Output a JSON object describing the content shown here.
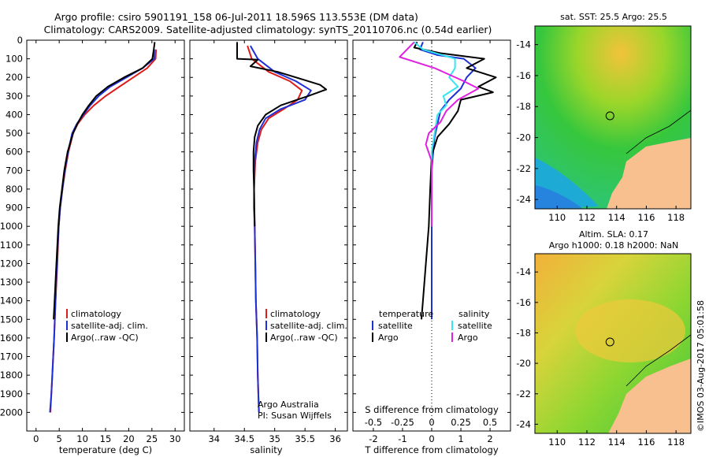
{
  "header": {
    "title_line1": "Argo profile: csiro 5901191_158 06-Jul-2011 18.596S 113.553E (DM data)",
    "title_line2": "Climatology: CARS2009. Satellite-adjusted climatology: synTS_20110706.nc (0.54d earlier)"
  },
  "colors": {
    "climatology": "#dd1c1c",
    "satellite": "#1f2fd6",
    "argo": "#000000",
    "sat_salinity": "#33e6f2",
    "argo_salinity": "#e020e0",
    "land": "#f7c08e"
  },
  "pressure_ticks": [
    "0",
    "100",
    "200",
    "300",
    "400",
    "500",
    "600",
    "700",
    "800",
    "900",
    "1000",
    "1100",
    "1200",
    "1300",
    "1400",
    "1500",
    "1600",
    "1700",
    "1800",
    "1900",
    "2000"
  ],
  "chart_data": [
    {
      "type": "line",
      "panel": "temperature",
      "xlabel": "temperature (deg C)",
      "xlim": [
        -2,
        32
      ],
      "ylim": [
        0,
        2100
      ],
      "y_reversed": true,
      "x_ticks": [
        "0",
        "5",
        "10",
        "15",
        "20",
        "25",
        "30"
      ],
      "legend": [
        "climatology",
        "satellite-adj. clim.",
        "Argo(..raw -QC)"
      ],
      "series": [
        {
          "name": "climatology",
          "color_key": "climatology",
          "points": [
            [
              25.9,
              50
            ],
            [
              25.8,
              100
            ],
            [
              24,
              150
            ],
            [
              21,
              200
            ],
            [
              18,
              250
            ],
            [
              15,
              300
            ],
            [
              12.5,
              350
            ],
            [
              10.5,
              400
            ],
            [
              9,
              450
            ],
            [
              8,
              500
            ],
            [
              7,
              600
            ],
            [
              6.3,
              700
            ],
            [
              5.7,
              800
            ],
            [
              5.2,
              900
            ],
            [
              4.9,
              1000
            ],
            [
              4.6,
              1200
            ],
            [
              4.2,
              1400
            ],
            [
              3.9,
              1600
            ],
            [
              3.5,
              1800
            ],
            [
              3.3,
              1900
            ],
            [
              3.1,
              2000
            ]
          ]
        },
        {
          "name": "satellite-adj. clim.",
          "color_key": "satellite",
          "points": [
            [
              25.5,
              50
            ],
            [
              25.5,
              100
            ],
            [
              23,
              150
            ],
            [
              19.5,
              200
            ],
            [
              16,
              250
            ],
            [
              13.5,
              300
            ],
            [
              11.7,
              350
            ],
            [
              10.2,
              400
            ],
            [
              8.8,
              450
            ],
            [
              7.8,
              500
            ],
            [
              6.9,
              600
            ],
            [
              6.2,
              700
            ],
            [
              5.7,
              800
            ],
            [
              5.2,
              900
            ],
            [
              4.9,
              1000
            ],
            [
              4.5,
              1200
            ],
            [
              4.2,
              1400
            ],
            [
              3.9,
              1600
            ],
            [
              3.5,
              1800
            ],
            [
              3.3,
              1900
            ],
            [
              3,
              2000
            ]
          ]
        },
        {
          "name": "Argo(..raw -QC)",
          "color_key": "argo",
          "points": [
            [
              25.6,
              10
            ],
            [
              25.4,
              50
            ],
            [
              25.1,
              100
            ],
            [
              23,
              150
            ],
            [
              19,
              200
            ],
            [
              15.5,
              250
            ],
            [
              13,
              300
            ],
            [
              11.4,
              350
            ],
            [
              10,
              400
            ],
            [
              8.9,
              450
            ],
            [
              8,
              500
            ],
            [
              6.8,
              600
            ],
            [
              6.1,
              700
            ],
            [
              5.6,
              800
            ],
            [
              5.1,
              900
            ],
            [
              4.8,
              1000
            ],
            [
              4.4,
              1200
            ],
            [
              4.0,
              1400
            ],
            [
              3.8,
              1500
            ]
          ]
        }
      ]
    },
    {
      "type": "line",
      "panel": "salinity",
      "xlabel": "salinity",
      "xlim": [
        33.6,
        36.2
      ],
      "ylim": [
        0,
        2100
      ],
      "y_reversed": true,
      "x_ticks": [
        "34",
        "34.5",
        "35",
        "35.5",
        "36"
      ],
      "legend": [
        "climatology",
        "satellite-adj. clim.",
        "Argo(..raw -QC)"
      ],
      "annotation": [
        "Argo Australia",
        "PI: Susan Wijffels"
      ],
      "series": [
        {
          "name": "climatology",
          "color_key": "climatology",
          "points": [
            [
              34.55,
              30
            ],
            [
              34.62,
              100
            ],
            [
              34.9,
              170
            ],
            [
              35.25,
              220
            ],
            [
              35.45,
              270
            ],
            [
              35.38,
              320
            ],
            [
              35.15,
              370
            ],
            [
              34.9,
              420
            ],
            [
              34.78,
              480
            ],
            [
              34.72,
              550
            ],
            [
              34.68,
              650
            ],
            [
              34.66,
              800
            ],
            [
              34.67,
              1000
            ],
            [
              34.68,
              1200
            ],
            [
              34.69,
              1400
            ],
            [
              34.71,
              1600
            ],
            [
              34.72,
              1800
            ],
            [
              34.74,
              2000
            ]
          ]
        },
        {
          "name": "satellite-adj. clim.",
          "color_key": "satellite",
          "points": [
            [
              34.6,
              30
            ],
            [
              34.72,
              100
            ],
            [
              35.0,
              170
            ],
            [
              35.35,
              220
            ],
            [
              35.6,
              270
            ],
            [
              35.5,
              320
            ],
            [
              35.1,
              370
            ],
            [
              34.85,
              420
            ],
            [
              34.75,
              480
            ],
            [
              34.7,
              550
            ],
            [
              34.67,
              650
            ],
            [
              34.66,
              800
            ],
            [
              34.67,
              1000
            ],
            [
              34.68,
              1200
            ],
            [
              34.69,
              1400
            ],
            [
              34.71,
              1600
            ],
            [
              34.72,
              1800
            ],
            [
              34.74,
              2000
            ]
          ]
        },
        {
          "name": "Argo(..raw -QC)",
          "color_key": "argo",
          "points": [
            [
              34.38,
              10
            ],
            [
              34.38,
              100
            ],
            [
              34.72,
              105
            ],
            [
              34.6,
              140
            ],
            [
              35.05,
              170
            ],
            [
              35.45,
              210
            ],
            [
              35.75,
              240
            ],
            [
              35.85,
              265
            ],
            [
              35.55,
              300
            ],
            [
              35.1,
              350
            ],
            [
              34.85,
              400
            ],
            [
              34.72,
              460
            ],
            [
              34.67,
              520
            ],
            [
              34.65,
              600
            ],
            [
              34.65,
              700
            ],
            [
              34.66,
              800
            ],
            [
              34.66,
              900
            ],
            [
              34.67,
              1000
            ]
          ]
        }
      ]
    },
    {
      "type": "line",
      "panel": "difference",
      "xlabel": "T difference from climatology",
      "xlabel_top": "S difference from climatology",
      "xlim": [
        -2.7,
        2.7
      ],
      "ylim": [
        0,
        2100
      ],
      "y_reversed": true,
      "x_ticks": [
        "-2",
        "-1",
        "0",
        "1",
        "2"
      ],
      "x_ticks_top": [
        "-0.5",
        "-0.25",
        "0",
        "0.25",
        "0.5"
      ],
      "legend_headers": [
        "temperature",
        "salinity"
      ],
      "legend": [
        "satellite",
        "Argo",
        "satellite",
        "Argo"
      ],
      "series": [
        {
          "name": "satellite",
          "color_key": "satellite",
          "points": [
            [
              -0.3,
              10
            ],
            [
              -0.4,
              50
            ],
            [
              0.2,
              80
            ],
            [
              1.1,
              100
            ],
            [
              1.5,
              150
            ],
            [
              1.2,
              200
            ],
            [
              1.0,
              260
            ],
            [
              0.6,
              320
            ],
            [
              0.3,
              380
            ],
            [
              0.2,
              450
            ],
            [
              0.1,
              520
            ],
            [
              0.05,
              600
            ],
            [
              0.0,
              700
            ],
            [
              0.0,
              1000
            ],
            [
              0.0,
              1500
            ]
          ]
        },
        {
          "name": "Argo",
          "color_key": "argo",
          "points": [
            [
              -0.5,
              10
            ],
            [
              -0.6,
              40
            ],
            [
              0.3,
              70
            ],
            [
              1.8,
              100
            ],
            [
              1.2,
              150
            ],
            [
              2.2,
              200
            ],
            [
              1.6,
              250
            ],
            [
              2.1,
              280
            ],
            [
              1.0,
              320
            ],
            [
              0.9,
              380
            ],
            [
              0.6,
              450
            ],
            [
              0.2,
              520
            ],
            [
              0.0,
              620
            ],
            [
              -0.05,
              800
            ],
            [
              -0.1,
              1000
            ],
            [
              -0.2,
              1200
            ],
            [
              -0.3,
              1400
            ],
            [
              -0.35,
              1500
            ]
          ]
        },
        {
          "name": "satellite",
          "color_key": "sat_salinity",
          "points": [
            [
              -0.6,
              10
            ],
            [
              -0.3,
              50
            ],
            [
              0.8,
              100
            ],
            [
              0.8,
              150
            ],
            [
              0.6,
              200
            ],
            [
              0.9,
              250
            ],
            [
              0.4,
              300
            ],
            [
              0.5,
              350
            ],
            [
              0.2,
              400
            ],
            [
              0.1,
              500
            ],
            [
              0.0,
              600
            ],
            [
              0.0,
              800
            ],
            [
              0.0,
              1000
            ]
          ]
        },
        {
          "name": "Argo",
          "color_key": "argo_salinity",
          "points": [
            [
              -0.6,
              10
            ],
            [
              -1.1,
              90
            ],
            [
              0.1,
              150
            ],
            [
              1.1,
              220
            ],
            [
              1.6,
              260
            ],
            [
              0.9,
              320
            ],
            [
              0.5,
              380
            ],
            [
              0.3,
              440
            ],
            [
              -0.1,
              500
            ],
            [
              -0.2,
              560
            ],
            [
              0.0,
              650
            ],
            [
              0.0,
              800
            ],
            [
              0.0,
              1000
            ]
          ]
        }
      ]
    },
    {
      "type": "heatmap",
      "panel": "map-sst",
      "title": "sat. SST: 25.5 Argo: 25.5",
      "xlim": [
        108.5,
        119
      ],
      "ylim": [
        -24.6,
        -12.8
      ],
      "x_ticks": [
        "110",
        "112",
        "114",
        "116",
        "118"
      ],
      "y_ticks": [
        "-14",
        "-16",
        "-18",
        "-20",
        "-22",
        "-24"
      ],
      "marker": {
        "lon": 113.553,
        "lat": -18.596
      }
    },
    {
      "type": "heatmap",
      "panel": "map-sla",
      "title_line1": "Altim. SLA: 0.17",
      "title_line2": "Argo h1000: 0.18 h2000: NaN",
      "xlim": [
        108.5,
        119
      ],
      "ylim": [
        -24.6,
        -12.8
      ],
      "x_ticks": [
        "110",
        "112",
        "114",
        "116",
        "118"
      ],
      "y_ticks": [
        "-14",
        "-16",
        "-18",
        "-20",
        "-22",
        "-24"
      ],
      "marker": {
        "lon": 113.553,
        "lat": -18.596
      }
    }
  ],
  "credit": "©IMOS 03-Aug-2017 05:01:58"
}
